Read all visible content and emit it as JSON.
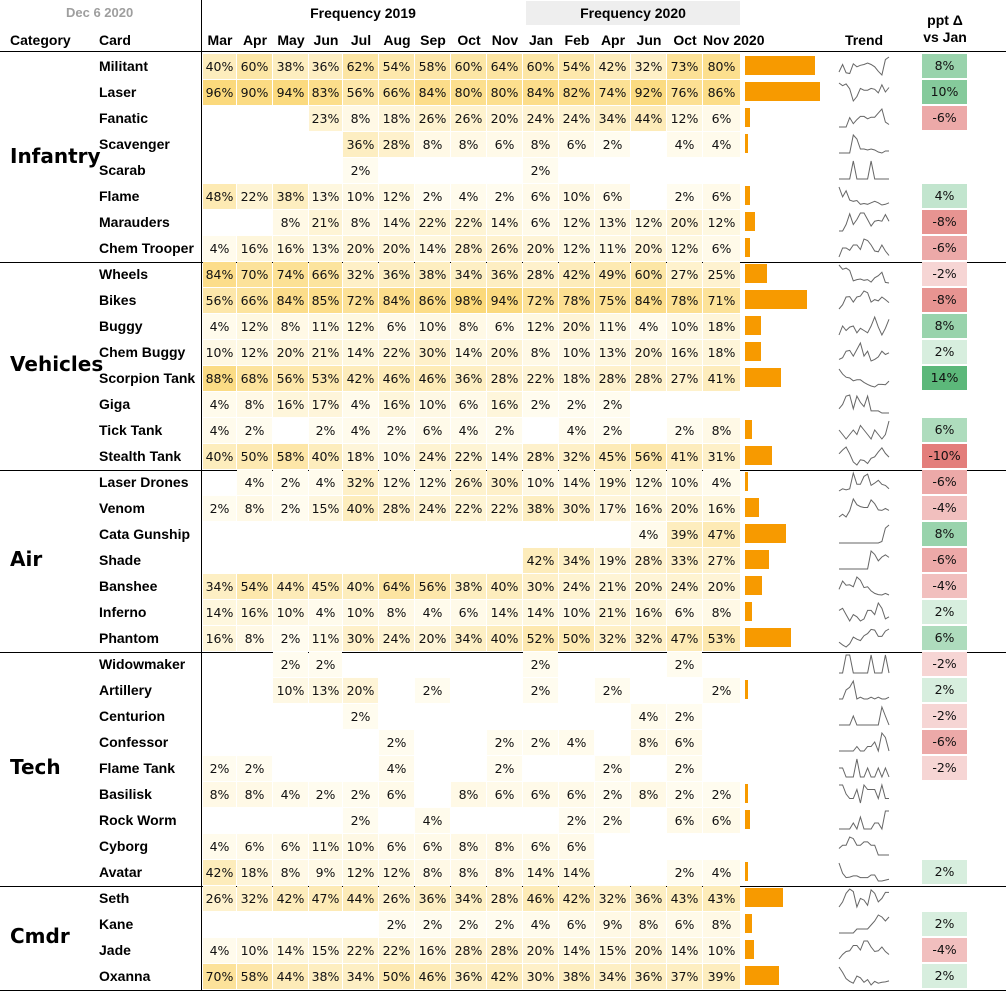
{
  "header": {
    "date": "Dec 6 2020",
    "group_2019": "Frequency 2019",
    "group_2020": "Frequency 2020",
    "col_category": "Category",
    "col_card": "Card",
    "col_trend": "Trend",
    "col_delta_line1": "ppt Δ",
    "col_delta_line2": "vs Jan"
  },
  "chart_data": {
    "type": "table",
    "months": [
      "Mar",
      "Apr",
      "May",
      "Jun",
      "Jul",
      "Aug",
      "Sep",
      "Oct",
      "Nov",
      "Jan",
      "Feb",
      "Apr",
      "Jun",
      "Oct",
      "Nov 2020"
    ],
    "month_years": [
      2019,
      2019,
      2019,
      2019,
      2019,
      2019,
      2019,
      2019,
      2019,
      2020,
      2020,
      2020,
      2020,
      2020,
      2020
    ],
    "colors": {
      "bar": "#f79a00",
      "heat_low": "#fffdf3",
      "heat_high": "#fbd97a",
      "delta_pos": "#5cb87a",
      "delta_neg": "#d9534f"
    },
    "categories": [
      {
        "name": "Infantry",
        "cards": [
          {
            "card": "Militant",
            "values": [
              "40%",
              "60%",
              "38%",
              "36%",
              "62%",
              "54%",
              "58%",
              "60%",
              "64%",
              "60%",
              "54%",
              "42%",
              "32%",
              "73%",
              "80%"
            ],
            "delta": "8%"
          },
          {
            "card": "Laser",
            "values": [
              "96%",
              "90%",
              "94%",
              "83%",
              "56%",
              "66%",
              "84%",
              "80%",
              "80%",
              "84%",
              "82%",
              "74%",
              "92%",
              "76%",
              "86%"
            ],
            "delta": "10%"
          },
          {
            "card": "Fanatic",
            "values": [
              "",
              "",
              "",
              "23%",
              "8%",
              "18%",
              "26%",
              "26%",
              "20%",
              "24%",
              "24%",
              "34%",
              "44%",
              "12%",
              "6%"
            ],
            "delta": "-6%"
          },
          {
            "card": "Scavenger",
            "values": [
              "",
              "",
              "",
              "",
              "36%",
              "28%",
              "8%",
              "8%",
              "6%",
              "8%",
              "6%",
              "2%",
              "",
              "4%",
              "4%"
            ],
            "delta": ""
          },
          {
            "card": "Scarab",
            "values": [
              "",
              "",
              "",
              "",
              "2%",
              "",
              "",
              "",
              "",
              "2%",
              "",
              "",
              "",
              "",
              ""
            ],
            "delta": ""
          },
          {
            "card": "Flame",
            "values": [
              "48%",
              "22%",
              "38%",
              "13%",
              "10%",
              "12%",
              "2%",
              "4%",
              "2%",
              "6%",
              "10%",
              "6%",
              "",
              "2%",
              "6%"
            ],
            "delta": "4%"
          },
          {
            "card": "Marauders",
            "values": [
              "",
              "",
              "8%",
              "21%",
              "8%",
              "14%",
              "22%",
              "22%",
              "14%",
              "6%",
              "12%",
              "13%",
              "12%",
              "20%",
              "12%"
            ],
            "delta": "-8%"
          },
          {
            "card": "Chem Trooper",
            "values": [
              "4%",
              "16%",
              "16%",
              "13%",
              "20%",
              "20%",
              "14%",
              "28%",
              "26%",
              "20%",
              "12%",
              "11%",
              "20%",
              "12%",
              "6%"
            ],
            "delta": "-6%"
          }
        ]
      },
      {
        "name": "Vehicles",
        "cards": [
          {
            "card": "Wheels",
            "values": [
              "84%",
              "70%",
              "74%",
              "66%",
              "32%",
              "36%",
              "38%",
              "34%",
              "36%",
              "28%",
              "42%",
              "49%",
              "60%",
              "27%",
              "25%"
            ],
            "delta": "-2%"
          },
          {
            "card": "Bikes",
            "values": [
              "56%",
              "66%",
              "84%",
              "85%",
              "72%",
              "84%",
              "86%",
              "98%",
              "94%",
              "72%",
              "78%",
              "75%",
              "84%",
              "78%",
              "71%"
            ],
            "delta": "-8%"
          },
          {
            "card": "Buggy",
            "values": [
              "4%",
              "12%",
              "8%",
              "11%",
              "12%",
              "6%",
              "10%",
              "8%",
              "6%",
              "12%",
              "20%",
              "11%",
              "4%",
              "10%",
              "18%"
            ],
            "delta": "8%"
          },
          {
            "card": "Chem Buggy",
            "values": [
              "10%",
              "12%",
              "20%",
              "21%",
              "14%",
              "22%",
              "30%",
              "14%",
              "20%",
              "8%",
              "10%",
              "13%",
              "20%",
              "16%",
              "18%"
            ],
            "delta": "2%"
          },
          {
            "card": "Scorpion Tank",
            "values": [
              "88%",
              "68%",
              "56%",
              "53%",
              "42%",
              "46%",
              "46%",
              "36%",
              "28%",
              "22%",
              "18%",
              "28%",
              "28%",
              "27%",
              "41%"
            ],
            "delta": "14%"
          },
          {
            "card": "Giga",
            "values": [
              "4%",
              "8%",
              "16%",
              "17%",
              "4%",
              "16%",
              "10%",
              "6%",
              "16%",
              "2%",
              "2%",
              "2%",
              "",
              "",
              ""
            ],
            "delta": ""
          },
          {
            "card": "Tick Tank",
            "values": [
              "4%",
              "2%",
              "",
              "2%",
              "4%",
              "2%",
              "6%",
              "4%",
              "2%",
              "",
              "4%",
              "2%",
              "",
              "2%",
              "8%"
            ],
            "delta": "6%"
          },
          {
            "card": "Stealth Tank",
            "values": [
              "40%",
              "50%",
              "58%",
              "40%",
              "18%",
              "10%",
              "24%",
              "22%",
              "14%",
              "28%",
              "32%",
              "45%",
              "56%",
              "41%",
              "31%"
            ],
            "delta": "-10%"
          }
        ]
      },
      {
        "name": "Air",
        "cards": [
          {
            "card": "Laser Drones",
            "values": [
              "",
              "4%",
              "2%",
              "4%",
              "32%",
              "12%",
              "12%",
              "26%",
              "30%",
              "10%",
              "14%",
              "19%",
              "12%",
              "10%",
              "4%"
            ],
            "delta": "-6%"
          },
          {
            "card": "Venom",
            "values": [
              "2%",
              "8%",
              "2%",
              "15%",
              "40%",
              "28%",
              "24%",
              "22%",
              "22%",
              "38%",
              "30%",
              "17%",
              "16%",
              "20%",
              "16%"
            ],
            "delta": "-4%"
          },
          {
            "card": "Cata Gunship",
            "values": [
              "",
              "",
              "",
              "",
              "",
              "",
              "",
              "",
              "",
              "",
              "",
              "",
              "4%",
              "39%",
              "47%"
            ],
            "delta": "8%"
          },
          {
            "card": "Shade",
            "values": [
              "",
              "",
              "",
              "",
              "",
              "",
              "",
              "",
              "",
              "42%",
              "34%",
              "19%",
              "28%",
              "33%",
              "27%"
            ],
            "delta": "-6%"
          },
          {
            "card": "Banshee",
            "values": [
              "34%",
              "54%",
              "44%",
              "45%",
              "40%",
              "64%",
              "56%",
              "38%",
              "40%",
              "30%",
              "24%",
              "21%",
              "20%",
              "24%",
              "20%"
            ],
            "delta": "-4%"
          },
          {
            "card": "Inferno",
            "values": [
              "14%",
              "16%",
              "10%",
              "4%",
              "10%",
              "8%",
              "4%",
              "6%",
              "14%",
              "14%",
              "10%",
              "21%",
              "16%",
              "6%",
              "8%"
            ],
            "delta": "2%"
          },
          {
            "card": "Phantom",
            "values": [
              "16%",
              "8%",
              "2%",
              "11%",
              "30%",
              "24%",
              "20%",
              "34%",
              "40%",
              "52%",
              "50%",
              "32%",
              "32%",
              "47%",
              "53%"
            ],
            "delta": "6%"
          }
        ]
      },
      {
        "name": "Tech",
        "cards": [
          {
            "card": "Widowmaker",
            "values": [
              "",
              "",
              "2%",
              "2%",
              "",
              "",
              "",
              "",
              "",
              "2%",
              "",
              "",
              "",
              "2%",
              ""
            ],
            "delta": "-2%"
          },
          {
            "card": "Artillery",
            "values": [
              "",
              "",
              "10%",
              "13%",
              "20%",
              "",
              "2%",
              "",
              "",
              "2%",
              "",
              "2%",
              "",
              "",
              "2%"
            ],
            "delta": "2%"
          },
          {
            "card": "Centurion",
            "values": [
              "",
              "",
              "",
              "",
              "2%",
              "",
              "",
              "",
              "",
              "",
              "",
              "",
              "4%",
              "2%",
              ""
            ],
            "delta": "-2%"
          },
          {
            "card": "Confessor",
            "values": [
              "",
              "",
              "",
              "",
              "",
              "2%",
              "",
              "",
              "2%",
              "2%",
              "4%",
              "",
              "8%",
              "6%",
              ""
            ],
            "delta": "-6%"
          },
          {
            "card": "Flame Tank",
            "values": [
              "2%",
              "2%",
              "",
              "",
              "",
              "4%",
              "",
              "",
              "2%",
              "",
              "",
              "2%",
              "",
              "2%",
              ""
            ],
            "delta": "-2%"
          },
          {
            "card": "Basilisk",
            "values": [
              "8%",
              "8%",
              "4%",
              "2%",
              "2%",
              "6%",
              "",
              "8%",
              "6%",
              "6%",
              "6%",
              "2%",
              "8%",
              "2%",
              "2%"
            ],
            "delta": ""
          },
          {
            "card": "Rock Worm",
            "values": [
              "",
              "",
              "",
              "",
              "2%",
              "",
              "4%",
              "",
              "",
              "",
              "2%",
              "2%",
              "",
              "6%",
              "6%"
            ],
            "delta": ""
          },
          {
            "card": "Cyborg",
            "values": [
              "4%",
              "6%",
              "6%",
              "11%",
              "10%",
              "6%",
              "6%",
              "8%",
              "8%",
              "6%",
              "6%",
              "",
              "",
              "",
              ""
            ],
            "delta": ""
          },
          {
            "card": "Avatar",
            "values": [
              "42%",
              "18%",
              "8%",
              "9%",
              "12%",
              "12%",
              "8%",
              "8%",
              "8%",
              "14%",
              "14%",
              "",
              "",
              "2%",
              "4%"
            ],
            "delta": "2%"
          }
        ]
      },
      {
        "name": "Cmdr",
        "cards": [
          {
            "card": "Seth",
            "values": [
              "26%",
              "32%",
              "42%",
              "47%",
              "44%",
              "26%",
              "36%",
              "34%",
              "28%",
              "46%",
              "42%",
              "32%",
              "36%",
              "43%",
              "43%"
            ],
            "delta": ""
          },
          {
            "card": "Kane",
            "values": [
              "",
              "",
              "",
              "",
              "",
              "2%",
              "2%",
              "2%",
              "2%",
              "4%",
              "6%",
              "9%",
              "8%",
              "6%",
              "8%"
            ],
            "delta": "2%"
          },
          {
            "card": "Jade",
            "values": [
              "4%",
              "10%",
              "14%",
              "15%",
              "22%",
              "22%",
              "16%",
              "28%",
              "28%",
              "20%",
              "14%",
              "15%",
              "20%",
              "14%",
              "10%"
            ],
            "delta": "-4%"
          },
          {
            "card": "Oxanna",
            "values": [
              "70%",
              "58%",
              "44%",
              "38%",
              "34%",
              "50%",
              "46%",
              "36%",
              "42%",
              "30%",
              "38%",
              "34%",
              "36%",
              "37%",
              "39%"
            ],
            "delta": "2%"
          }
        ]
      }
    ]
  }
}
